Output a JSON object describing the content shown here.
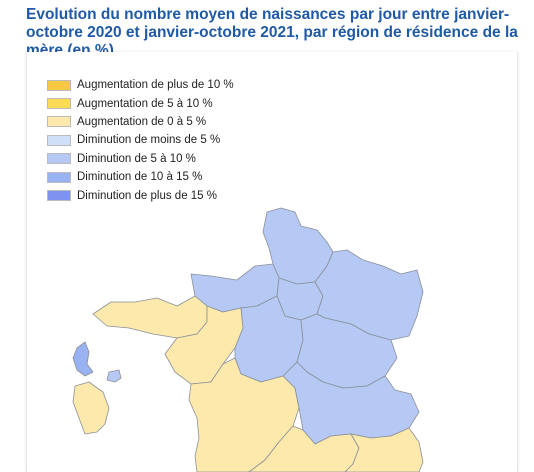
{
  "title": "Evolution du nombre moyen de naissances par jour entre janvier-octobre 2020 et janvier-octobre 2021, par région de résidence de la mère (en %)",
  "legend": [
    {
      "label": "Augmentation de plus de 10 %",
      "color": "#f7c842"
    },
    {
      "label": "Augmentation de 5 à 10 %",
      "color": "#fbdb55"
    },
    {
      "label": "Augmentation de 0 à 5 %",
      "color": "#fde9ac"
    },
    {
      "label": "Diminution de moins de 5 %",
      "color": "#cfdff8"
    },
    {
      "label": "Diminution de 5 à 10 %",
      "color": "#b5c9f4"
    },
    {
      "label": "Diminution de 10 à 15 %",
      "color": "#99b2f2"
    },
    {
      "label": "Diminution de plus de 15 %",
      "color": "#7e92ef"
    }
  ],
  "map": {
    "regions": [
      {
        "id": "hauts-de-france",
        "class_index": 4
      },
      {
        "id": "normandie",
        "class_index": 4
      },
      {
        "id": "ile-de-france",
        "class_index": 4
      },
      {
        "id": "grand-est",
        "class_index": 4
      },
      {
        "id": "bretagne",
        "class_index": 2
      },
      {
        "id": "pays-de-la-loire",
        "class_index": 2
      },
      {
        "id": "centre-val-de-loire",
        "class_index": 4
      },
      {
        "id": "bourgogne-franche-comte",
        "class_index": 4
      },
      {
        "id": "nouvelle-aquitaine",
        "class_index": 2
      },
      {
        "id": "auvergne-rhone-alpes",
        "class_index": 4
      },
      {
        "id": "occitanie",
        "class_index": 2
      },
      {
        "id": "provence-alpes-cote-d-azur",
        "class_index": 2
      },
      {
        "id": "guadeloupe",
        "class_index": 5
      },
      {
        "id": "martinique",
        "class_index": 4
      },
      {
        "id": "guyane",
        "class_index": 2
      }
    ]
  }
}
